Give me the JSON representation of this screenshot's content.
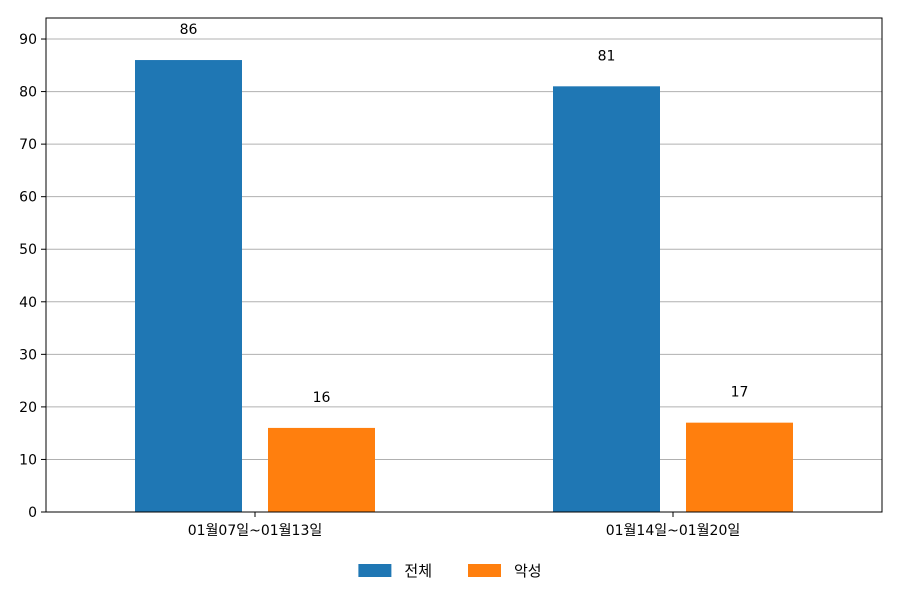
{
  "chart_data": {
    "type": "bar",
    "categories": [
      "01월07일~01월13일",
      "01월14일~01월20일"
    ],
    "series": [
      {
        "name": "전체",
        "values": [
          86,
          81
        ],
        "color": "#1f77b4"
      },
      {
        "name": "악성",
        "values": [
          16,
          17
        ],
        "color": "#ff7f0e"
      }
    ],
    "ylim": [
      0,
      94
    ],
    "yticks": [
      0,
      10,
      20,
      30,
      40,
      50,
      60,
      70,
      80,
      90
    ],
    "grid": true,
    "legend_position": "bottom-center",
    "data_labels": true
  }
}
